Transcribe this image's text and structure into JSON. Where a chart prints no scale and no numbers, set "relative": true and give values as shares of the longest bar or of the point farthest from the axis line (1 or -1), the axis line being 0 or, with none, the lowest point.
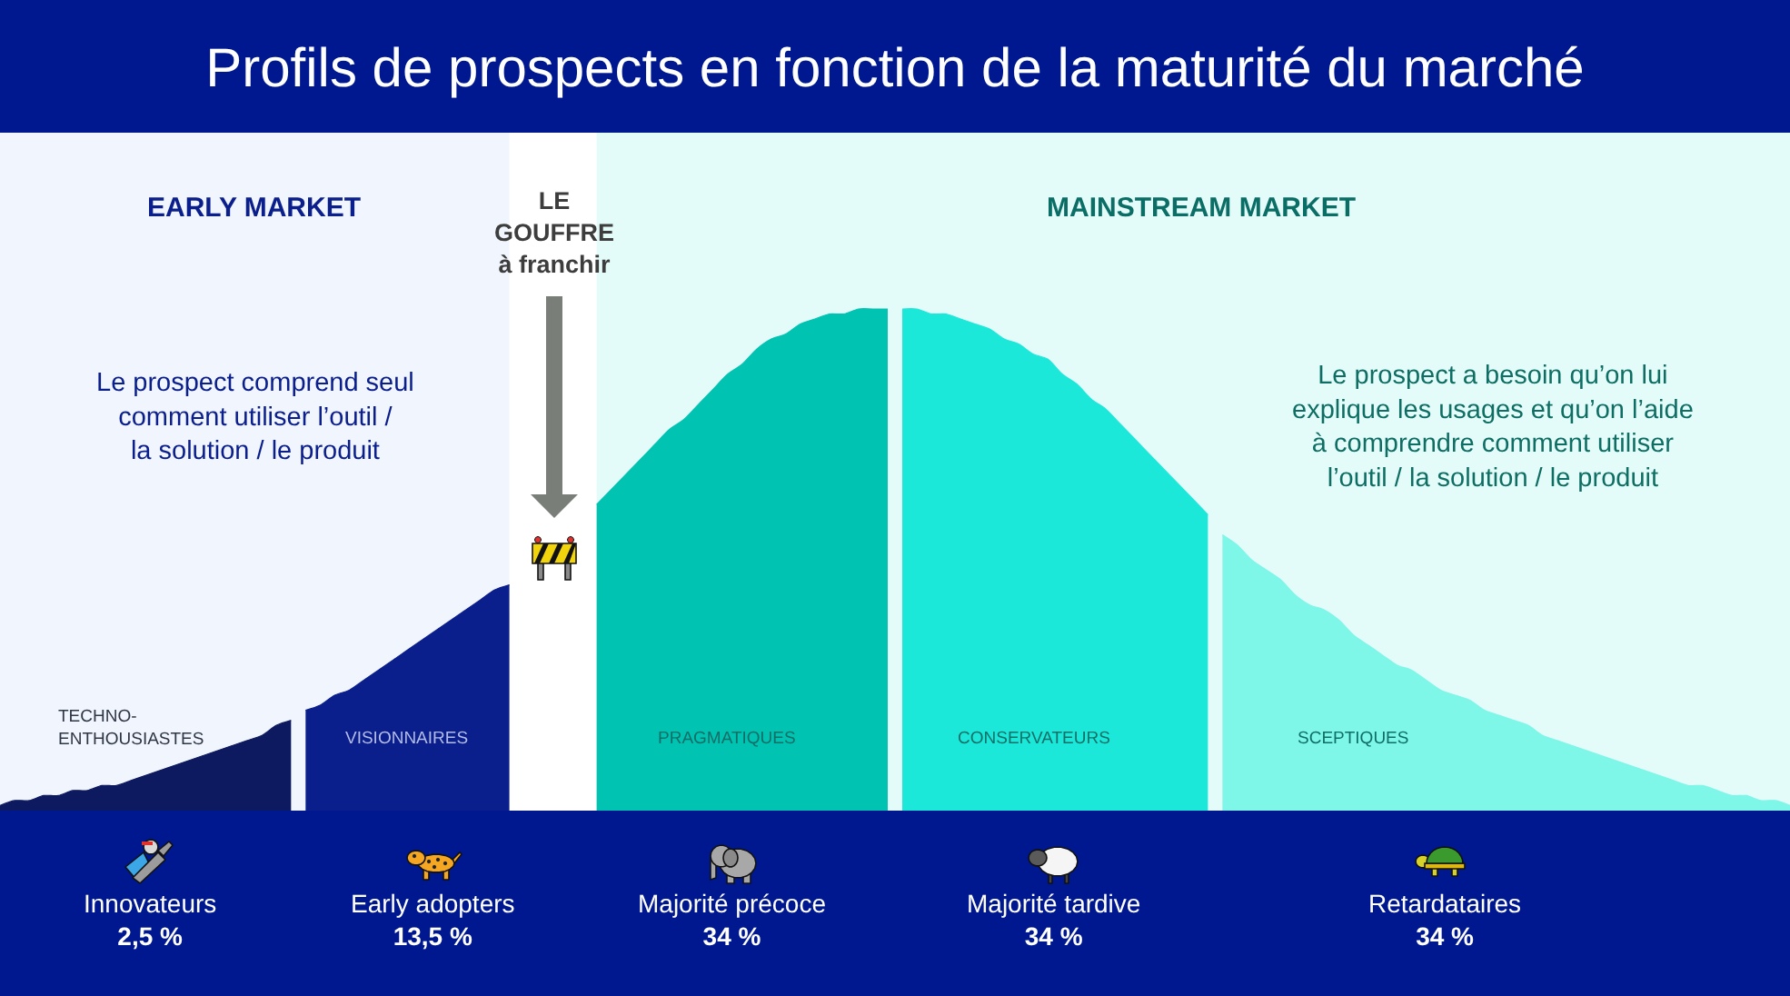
{
  "chart_data": {
    "type": "area",
    "relative": true,
    "title": "Profils de prospects en fonction de la maturité du marché",
    "categories": [
      null,
      null,
      null,
      null,
      null,
      null,
      null,
      null,
      null,
      null,
      null,
      null,
      null,
      null,
      null,
      null,
      null,
      null,
      null,
      null,
      null,
      null,
      null,
      null,
      null,
      null,
      null,
      null,
      null,
      null,
      null,
      null,
      null,
      null,
      null,
      null,
      null,
      null,
      null,
      null,
      null,
      null,
      null,
      null,
      null,
      null,
      null,
      null,
      null,
      null,
      null,
      null,
      null,
      null,
      null,
      null,
      null,
      null,
      null,
      null,
      null,
      null,
      null,
      null,
      null,
      null,
      null,
      null,
      null,
      null,
      null,
      null,
      null,
      null,
      null,
      null,
      null,
      null,
      null,
      null,
      null,
      null,
      null,
      null,
      null,
      null,
      null,
      null,
      null,
      null,
      null,
      null,
      null,
      null,
      null,
      null,
      null,
      null,
      null,
      null,
      null,
      null,
      null,
      null,
      null,
      null,
      null,
      null,
      null,
      null,
      null,
      null,
      null,
      null,
      null,
      null,
      null,
      null,
      null,
      null,
      null,
      null,
      null,
      null
    ],
    "series": [
      {
        "name": "TECHNO-\nENTHOUSIASTES",
        "color": "#0d1a60",
        "values": [
          0.01,
          0.02,
          0.02,
          0.03,
          0.03,
          0.04,
          0.04,
          0.05,
          0.05,
          0.06,
          0.07,
          0.08,
          0.09,
          0.1,
          0.11,
          0.12,
          0.13,
          0.14,
          0.15,
          0.17,
          0.18,
          null,
          null,
          null,
          null,
          null,
          null,
          null,
          null,
          null,
          null,
          null,
          null,
          null,
          null,
          null,
          null,
          null,
          null,
          null,
          null,
          null,
          null,
          null,
          null,
          null,
          null,
          null,
          null,
          null,
          null,
          null,
          null,
          null,
          null,
          null,
          null,
          null,
          null,
          null,
          null,
          null,
          null,
          null,
          null,
          null,
          null,
          null,
          null,
          null,
          null,
          null,
          null,
          null,
          null,
          null,
          null,
          null,
          null,
          null,
          null,
          null,
          null,
          null,
          null,
          null,
          null,
          null,
          null,
          null,
          null,
          null,
          null,
          null,
          null,
          null,
          null,
          null,
          null,
          null,
          null,
          null,
          null,
          null,
          null,
          null,
          null,
          null,
          null,
          null,
          null,
          null,
          null,
          null,
          null,
          null,
          null,
          null,
          null,
          null,
          null,
          null,
          null,
          null
        ]
      },
      {
        "name": "VISIONNAIRES",
        "color": "#0a1e8c",
        "values": [
          null,
          null,
          null,
          null,
          null,
          null,
          null,
          null,
          null,
          null,
          null,
          null,
          null,
          null,
          null,
          null,
          null,
          null,
          null,
          null,
          null,
          0.2,
          0.21,
          0.23,
          0.24,
          0.26,
          0.28,
          0.3,
          0.32,
          0.34,
          0.36,
          0.38,
          0.4,
          0.42,
          0.44,
          0.45,
          null,
          null,
          null,
          null,
          null,
          null,
          null,
          null,
          null,
          null,
          null,
          null,
          null,
          null,
          null,
          null,
          null,
          null,
          null,
          null,
          null,
          null,
          null,
          null,
          null,
          null,
          null,
          null,
          null,
          null,
          null,
          null,
          null,
          null,
          null,
          null,
          null,
          null,
          null,
          null,
          null,
          null,
          null,
          null,
          null,
          null,
          null,
          null,
          null,
          null,
          null,
          null,
          null,
          null,
          null,
          null,
          null,
          null,
          null,
          null,
          null,
          null,
          null,
          null,
          null,
          null,
          null,
          null,
          null,
          null,
          null,
          null,
          null,
          null,
          null,
          null,
          null,
          null,
          null,
          null,
          null,
          null,
          null,
          null,
          null,
          null,
          null,
          null
        ]
      },
      {
        "name": "PRAGMATIQUES",
        "color": "#00c3b2",
        "values": [
          null,
          null,
          null,
          null,
          null,
          null,
          null,
          null,
          null,
          null,
          null,
          null,
          null,
          null,
          null,
          null,
          null,
          null,
          null,
          null,
          null,
          null,
          null,
          null,
          null,
          null,
          null,
          null,
          null,
          null,
          null,
          null,
          null,
          null,
          null,
          null,
          null,
          null,
          null,
          null,
          null,
          0.61,
          0.64,
          0.67,
          0.7,
          0.73,
          0.76,
          0.78,
          0.81,
          0.84,
          0.87,
          0.89,
          0.92,
          0.94,
          0.95,
          0.97,
          0.98,
          0.99,
          0.99,
          1,
          1,
          1,
          null,
          null,
          null,
          null,
          null,
          null,
          null,
          null,
          null,
          null,
          null,
          null,
          null,
          null,
          null,
          null,
          null,
          null,
          null,
          null,
          null,
          null,
          null,
          null,
          null,
          null,
          null,
          null,
          null,
          null,
          null,
          null,
          null,
          null,
          null,
          null,
          null,
          null,
          null,
          null,
          null,
          null,
          null,
          null,
          null,
          null,
          null,
          null,
          null,
          null,
          null,
          null,
          null,
          null,
          null,
          null,
          null,
          null,
          null,
          null,
          null,
          null
        ]
      },
      {
        "name": "CONSERVATEURS",
        "color": "#1ce8da",
        "values": [
          null,
          null,
          null,
          null,
          null,
          null,
          null,
          null,
          null,
          null,
          null,
          null,
          null,
          null,
          null,
          null,
          null,
          null,
          null,
          null,
          null,
          null,
          null,
          null,
          null,
          null,
          null,
          null,
          null,
          null,
          null,
          null,
          null,
          null,
          null,
          null,
          null,
          null,
          null,
          null,
          null,
          null,
          null,
          null,
          null,
          null,
          null,
          null,
          null,
          null,
          null,
          null,
          null,
          null,
          null,
          null,
          null,
          null,
          null,
          null,
          null,
          null,
          1,
          1,
          0.99,
          0.99,
          0.98,
          0.97,
          0.96,
          0.94,
          0.93,
          0.91,
          0.9,
          0.87,
          0.85,
          0.82,
          0.8,
          0.77,
          0.74,
          0.71,
          0.68,
          0.65,
          0.62,
          0.59,
          null,
          null,
          null,
          null,
          null,
          null,
          null,
          null,
          null,
          null,
          null,
          null,
          null,
          null,
          null,
          null,
          null,
          null,
          null,
          null,
          null,
          null,
          null,
          null,
          null,
          null,
          null,
          null,
          null,
          null,
          null,
          null,
          null,
          null,
          null,
          null,
          null,
          null,
          null,
          null
        ]
      },
      {
        "name": "SCEPTIQUES",
        "color": "#7ef6e8",
        "values": [
          null,
          null,
          null,
          null,
          null,
          null,
          null,
          null,
          null,
          null,
          null,
          null,
          null,
          null,
          null,
          null,
          null,
          null,
          null,
          null,
          null,
          null,
          null,
          null,
          null,
          null,
          null,
          null,
          null,
          null,
          null,
          null,
          null,
          null,
          null,
          null,
          null,
          null,
          null,
          null,
          null,
          null,
          null,
          null,
          null,
          null,
          null,
          null,
          null,
          null,
          null,
          null,
          null,
          null,
          null,
          null,
          null,
          null,
          null,
          null,
          null,
          null,
          null,
          null,
          null,
          null,
          null,
          null,
          null,
          null,
          null,
          null,
          null,
          null,
          null,
          null,
          null,
          null,
          null,
          null,
          null,
          null,
          null,
          null,
          0.55,
          0.53,
          0.5,
          0.48,
          0.46,
          0.43,
          0.41,
          0.4,
          0.38,
          0.35,
          0.33,
          0.31,
          0.29,
          0.28,
          0.26,
          0.24,
          0.23,
          0.22,
          0.2,
          0.19,
          0.18,
          0.17,
          0.15,
          0.14,
          0.13,
          0.12,
          0.11,
          0.1,
          0.09,
          0.08,
          0.07,
          0.06,
          0.05,
          0.05,
          0.04,
          0.03,
          0.03,
          0.02,
          0.02,
          0.01
        ]
      }
    ],
    "annotations": [
      "EARLY MARKET",
      "MAINSTREAM MARKET",
      "LE\nGOUFFRE\nà franchir",
      "Le prospect comprend seul\ncomment utiliser l’outil /\nla solution / le produit",
      "Le prospect a besoin qu’on lui\nexplique les usages et qu’on l’aide\nà comprendre comment utiliser\nl’outil / la solution / le produit",
      "Innovateurs\n2,5 %",
      "Early adopters\n13,5 %",
      "Majorité précoce\n34 %",
      "Majorité tardive\n34 %",
      "Retardataires\n34 %"
    ]
  }
}
